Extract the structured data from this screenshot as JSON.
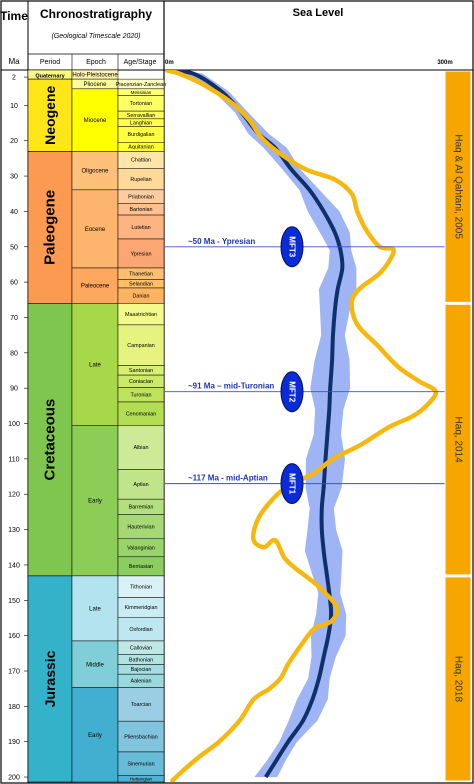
{
  "header": {
    "time_label": "Time",
    "ma_label": "Ma",
    "chrono_title": "Chronostratigraphy",
    "chrono_subtitle": "(Geological Timescale 2020)",
    "col_period": "Period",
    "col_epoch": "Epoch",
    "col_age": "Age/Stage",
    "sea_level_title": "Sea Level",
    "sl_axis_left": "0m",
    "sl_axis_right": "300m"
  },
  "colors": {
    "neogene": "#FFE619",
    "paleogene": "#FD9A52",
    "cretaceous": "#7FC64E",
    "jurassic": "#34B2C9",
    "pliocene": "#FFFF99",
    "miocene": "#FFFF00",
    "oligocene": "#FEC07A",
    "eocene": "#FDB46C",
    "paleocene": "#FDA75F",
    "late_cretaceous": "#A6D84A",
    "early_cretaceous": "#8CCD57",
    "late_jurassic": "#B3E3EE",
    "middle_jurassic": "#80CFD8",
    "early_jurassic": "#42AED0",
    "mft_oval": "#0A2BD6",
    "mft_line": "#3A4FD0",
    "yellow_curve": "#F6B80F",
    "dark_curve": "#10306B",
    "envelope": "#7F9BF0",
    "source_band": "#F7A600"
  },
  "time_ticks": [
    2,
    10,
    20,
    30,
    40,
    50,
    60,
    70,
    80,
    90,
    100,
    110,
    120,
    130,
    140,
    150,
    160,
    170,
    180,
    190,
    200
  ],
  "periods": [
    {
      "name": "Quaternary",
      "top": 0,
      "base": 2.58,
      "color": "#F9F97F",
      "small": true
    },
    {
      "name": "Neogene",
      "top": 2.58,
      "base": 23.03,
      "color": "#FFE619"
    },
    {
      "name": "Paleogene",
      "top": 23.03,
      "base": 66.0,
      "color": "#FD9A52"
    },
    {
      "name": "Cretaceous",
      "top": 66.0,
      "base": 143.1,
      "color": "#7FC64E"
    },
    {
      "name": "Jurassic",
      "top": 143.1,
      "base": 201.4,
      "color": "#34B2C9"
    }
  ],
  "epochs": [
    {
      "name": "Holo-Pleistocene",
      "top": 0,
      "base": 2.58,
      "color": "#FFF2AE"
    },
    {
      "name": "Pliocene",
      "top": 2.58,
      "base": 5.33,
      "color": "#FFFF99"
    },
    {
      "name": "Miocene",
      "top": 5.33,
      "base": 23.03,
      "color": "#FFFF00"
    },
    {
      "name": "Oligocene",
      "top": 23.03,
      "base": 33.9,
      "color": "#FEC07A"
    },
    {
      "name": "Eocene",
      "top": 33.9,
      "base": 56.0,
      "color": "#FDB46C"
    },
    {
      "name": "Paleocene",
      "top": 56.0,
      "base": 66.0,
      "color": "#FDA75F"
    },
    {
      "name": "Late",
      "top": 66.0,
      "base": 100.5,
      "color": "#A6D84A"
    },
    {
      "name": "Early",
      "top": 100.5,
      "base": 143.1,
      "color": "#8CCD57"
    },
    {
      "name": "Late",
      "top": 143.1,
      "base": 161.5,
      "color": "#B3E3EE"
    },
    {
      "name": "Middle",
      "top": 161.5,
      "base": 174.7,
      "color": "#80CFD8"
    },
    {
      "name": "Early",
      "top": 174.7,
      "base": 201.4,
      "color": "#42AED0"
    }
  ],
  "stages": [
    {
      "name": "Piacenzian-Zanclean",
      "top": 2.58,
      "base": 5.33,
      "color": "#FFFFBF"
    },
    {
      "name": "Messinian",
      "top": 5.33,
      "base": 7.25,
      "color": "#FFFF73"
    },
    {
      "name": "Tortonian",
      "top": 7.25,
      "base": 11.63,
      "color": "#FFFF66"
    },
    {
      "name": "Serravallian",
      "top": 11.63,
      "base": 13.82,
      "color": "#FFFF59"
    },
    {
      "name": "Langhian",
      "top": 13.82,
      "base": 15.97,
      "color": "#FFFF4D"
    },
    {
      "name": "Burdigalian",
      "top": 15.97,
      "base": 20.44,
      "color": "#FFFF41"
    },
    {
      "name": "Aquitanian",
      "top": 20.44,
      "base": 23.03,
      "color": "#FFFF33"
    },
    {
      "name": "Chattian",
      "top": 23.03,
      "base": 27.82,
      "color": "#FEE6AA"
    },
    {
      "name": "Rupelian",
      "top": 27.82,
      "base": 33.9,
      "color": "#FED99A"
    },
    {
      "name": "Priabonian",
      "top": 33.9,
      "base": 37.71,
      "color": "#FDCDA1"
    },
    {
      "name": "Bartonian",
      "top": 37.71,
      "base": 41.03,
      "color": "#FDC091"
    },
    {
      "name": "Lutetian",
      "top": 41.03,
      "base": 47.8,
      "color": "#FCB482"
    },
    {
      "name": "Ypresian",
      "top": 47.8,
      "base": 56.0,
      "color": "#FCA773"
    },
    {
      "name": "Thanetian",
      "top": 56.0,
      "base": 59.24,
      "color": "#FDBF6F"
    },
    {
      "name": "Selandian",
      "top": 59.24,
      "base": 61.66,
      "color": "#FEBF65"
    },
    {
      "name": "Danian",
      "top": 61.66,
      "base": 66.0,
      "color": "#FDB462"
    },
    {
      "name": "Maastrichtian",
      "top": 66.0,
      "base": 72.1,
      "color": "#F2FA8C"
    },
    {
      "name": "Campanian",
      "top": 72.1,
      "base": 83.6,
      "color": "#E6F47F"
    },
    {
      "name": "Santonian",
      "top": 83.6,
      "base": 86.3,
      "color": "#D9EF74"
    },
    {
      "name": "Coniacian",
      "top": 86.3,
      "base": 89.8,
      "color": "#CCE968"
    },
    {
      "name": "Turonian",
      "top": 89.8,
      "base": 93.9,
      "color": "#BFE35D"
    },
    {
      "name": "Cenomanian",
      "top": 93.9,
      "base": 100.5,
      "color": "#B3DE53"
    },
    {
      "name": "Albian",
      "top": 100.5,
      "base": 113.0,
      "color": "#CCEA97"
    },
    {
      "name": "Aptian",
      "top": 113.0,
      "base": 121.4,
      "color": "#BFE48A"
    },
    {
      "name": "Barremian",
      "top": 121.4,
      "base": 125.77,
      "color": "#B3DF7F"
    },
    {
      "name": "Hauterivian",
      "top": 125.77,
      "base": 132.6,
      "color": "#A6D975"
    },
    {
      "name": "Valanginian",
      "top": 132.6,
      "base": 137.7,
      "color": "#99D36A"
    },
    {
      "name": "Berriasian",
      "top": 137.7,
      "base": 143.1,
      "color": "#8CCD60"
    },
    {
      "name": "Tithonian",
      "top": 143.1,
      "base": 149.2,
      "color": "#D9F1F7"
    },
    {
      "name": "Kimmeridgian",
      "top": 149.2,
      "base": 154.8,
      "color": "#CCECF4"
    },
    {
      "name": "Oxfordian",
      "top": 154.8,
      "base": 161.5,
      "color": "#BFE7F1"
    },
    {
      "name": "Callovian",
      "top": 161.5,
      "base": 165.3,
      "color": "#BFE7E5"
    },
    {
      "name": "Bathonian",
      "top": 165.3,
      "base": 168.2,
      "color": "#B3E2E3"
    },
    {
      "name": "Bajocian",
      "top": 168.2,
      "base": 170.9,
      "color": "#A6DDE0"
    },
    {
      "name": "Aalenian",
      "top": 170.9,
      "base": 174.7,
      "color": "#9AD9DD"
    },
    {
      "name": "Toarcian",
      "top": 174.7,
      "base": 184.2,
      "color": "#99CEE3"
    },
    {
      "name": "Pliensbachian",
      "top": 184.2,
      "base": 192.9,
      "color": "#80C5DD"
    },
    {
      "name": "Sinemurian",
      "top": 192.9,
      "base": 199.5,
      "color": "#67BCD8"
    },
    {
      "name": "Hettangian",
      "top": 199.5,
      "base": 201.4,
      "color": "#4EB3D3"
    }
  ],
  "chart_data": {
    "type": "line",
    "title": "Sea Level",
    "xlabel": "",
    "ylabel": "Time",
    "x_unit": "m",
    "y_unit": "Ma",
    "xlim": [
      0,
      300
    ],
    "ylim": [
      2,
      200
    ],
    "y_inverted": true,
    "series": [
      {
        "name": "",
        "color": "#F6B80F",
        "points": [
          [
            0,
            0
          ],
          [
            15,
            1
          ],
          [
            40,
            4
          ],
          [
            70,
            9
          ],
          [
            90,
            14
          ],
          [
            103,
            19
          ],
          [
            120,
            23
          ],
          [
            150,
            28
          ],
          [
            182,
            31
          ],
          [
            200,
            35
          ],
          [
            206,
            40
          ],
          [
            215,
            45
          ],
          [
            230,
            50
          ],
          [
            245,
            51
          ],
          [
            232,
            57
          ],
          [
            208,
            62
          ],
          [
            200,
            66
          ],
          [
            206,
            72
          ],
          [
            228,
            78
          ],
          [
            250,
            84
          ],
          [
            272,
            88
          ],
          [
            290,
            91
          ],
          [
            280,
            95
          ],
          [
            265,
            98
          ],
          [
            240,
            101
          ],
          [
            210,
            106
          ],
          [
            180,
            110
          ],
          [
            160,
            114
          ],
          [
            130,
            118
          ],
          [
            110,
            123
          ],
          [
            98,
            128
          ],
          [
            95,
            133
          ],
          [
            106,
            135
          ],
          [
            118,
            133
          ],
          [
            128,
            138
          ],
          [
            140,
            141
          ],
          [
            155,
            144
          ],
          [
            168,
            147
          ],
          [
            184,
            152
          ],
          [
            178,
            156
          ],
          [
            160,
            158
          ],
          [
            145,
            163
          ],
          [
            132,
            168
          ],
          [
            124,
            172
          ],
          [
            112,
            175
          ],
          [
            95,
            178
          ],
          [
            80,
            184
          ],
          [
            58,
            190
          ],
          [
            38,
            194
          ],
          [
            20,
            198
          ],
          [
            8,
            201
          ]
        ]
      },
      {
        "name": "",
        "color": "#10306B",
        "points": [
          [
            0,
            0
          ],
          [
            30,
            1
          ],
          [
            60,
            6
          ],
          [
            82,
            12
          ],
          [
            100,
            18
          ],
          [
            118,
            22
          ],
          [
            135,
            28
          ],
          [
            155,
            34
          ],
          [
            170,
            40
          ],
          [
            182,
            46
          ],
          [
            188,
            51
          ],
          [
            190,
            56
          ],
          [
            185,
            62
          ],
          [
            182,
            68
          ],
          [
            180,
            75
          ],
          [
            179,
            82
          ],
          [
            177,
            90
          ],
          [
            176,
            96
          ],
          [
            174,
            103
          ],
          [
            172,
            110
          ],
          [
            170,
            118
          ],
          [
            168,
            124
          ],
          [
            168,
            130
          ],
          [
            170,
            136
          ],
          [
            173,
            142
          ],
          [
            176,
            148
          ],
          [
            178,
            154
          ],
          [
            175,
            160
          ],
          [
            170,
            166
          ],
          [
            165,
            172
          ],
          [
            158,
            178
          ],
          [
            148,
            184
          ],
          [
            132,
            190
          ],
          [
            120,
            195
          ],
          [
            108,
            200
          ]
        ]
      },
      {
        "name": "",
        "color": "#7F9BF0",
        "role": "envelope_width",
        "half_width_m": [
          [
            0,
            8
          ],
          [
            20,
            10
          ],
          [
            40,
            14
          ],
          [
            60,
            16
          ],
          [
            100,
            18
          ],
          [
            140,
            16
          ],
          [
            180,
            14
          ],
          [
            200,
            10
          ]
        ]
      }
    ],
    "marker_lines": [
      {
        "age": 50,
        "label": "~50 Ma - Ypresian",
        "mft": "MFT3"
      },
      {
        "age": 91,
        "label": "~91 Ma – mid-Turonian",
        "mft": "MFT2"
      },
      {
        "age": 117,
        "label": "~117 Ma - mid-Aptian",
        "mft": "MFT1"
      }
    ],
    "source_bands": [
      {
        "label": "Haq & Al Qahtani, 2005",
        "top": 0,
        "base": 66
      },
      {
        "label": "Haq, 2014",
        "top": 66,
        "base": 143.1
      },
      {
        "label": "Haq, 2018",
        "top": 143.1,
        "base": 201.4
      }
    ]
  }
}
